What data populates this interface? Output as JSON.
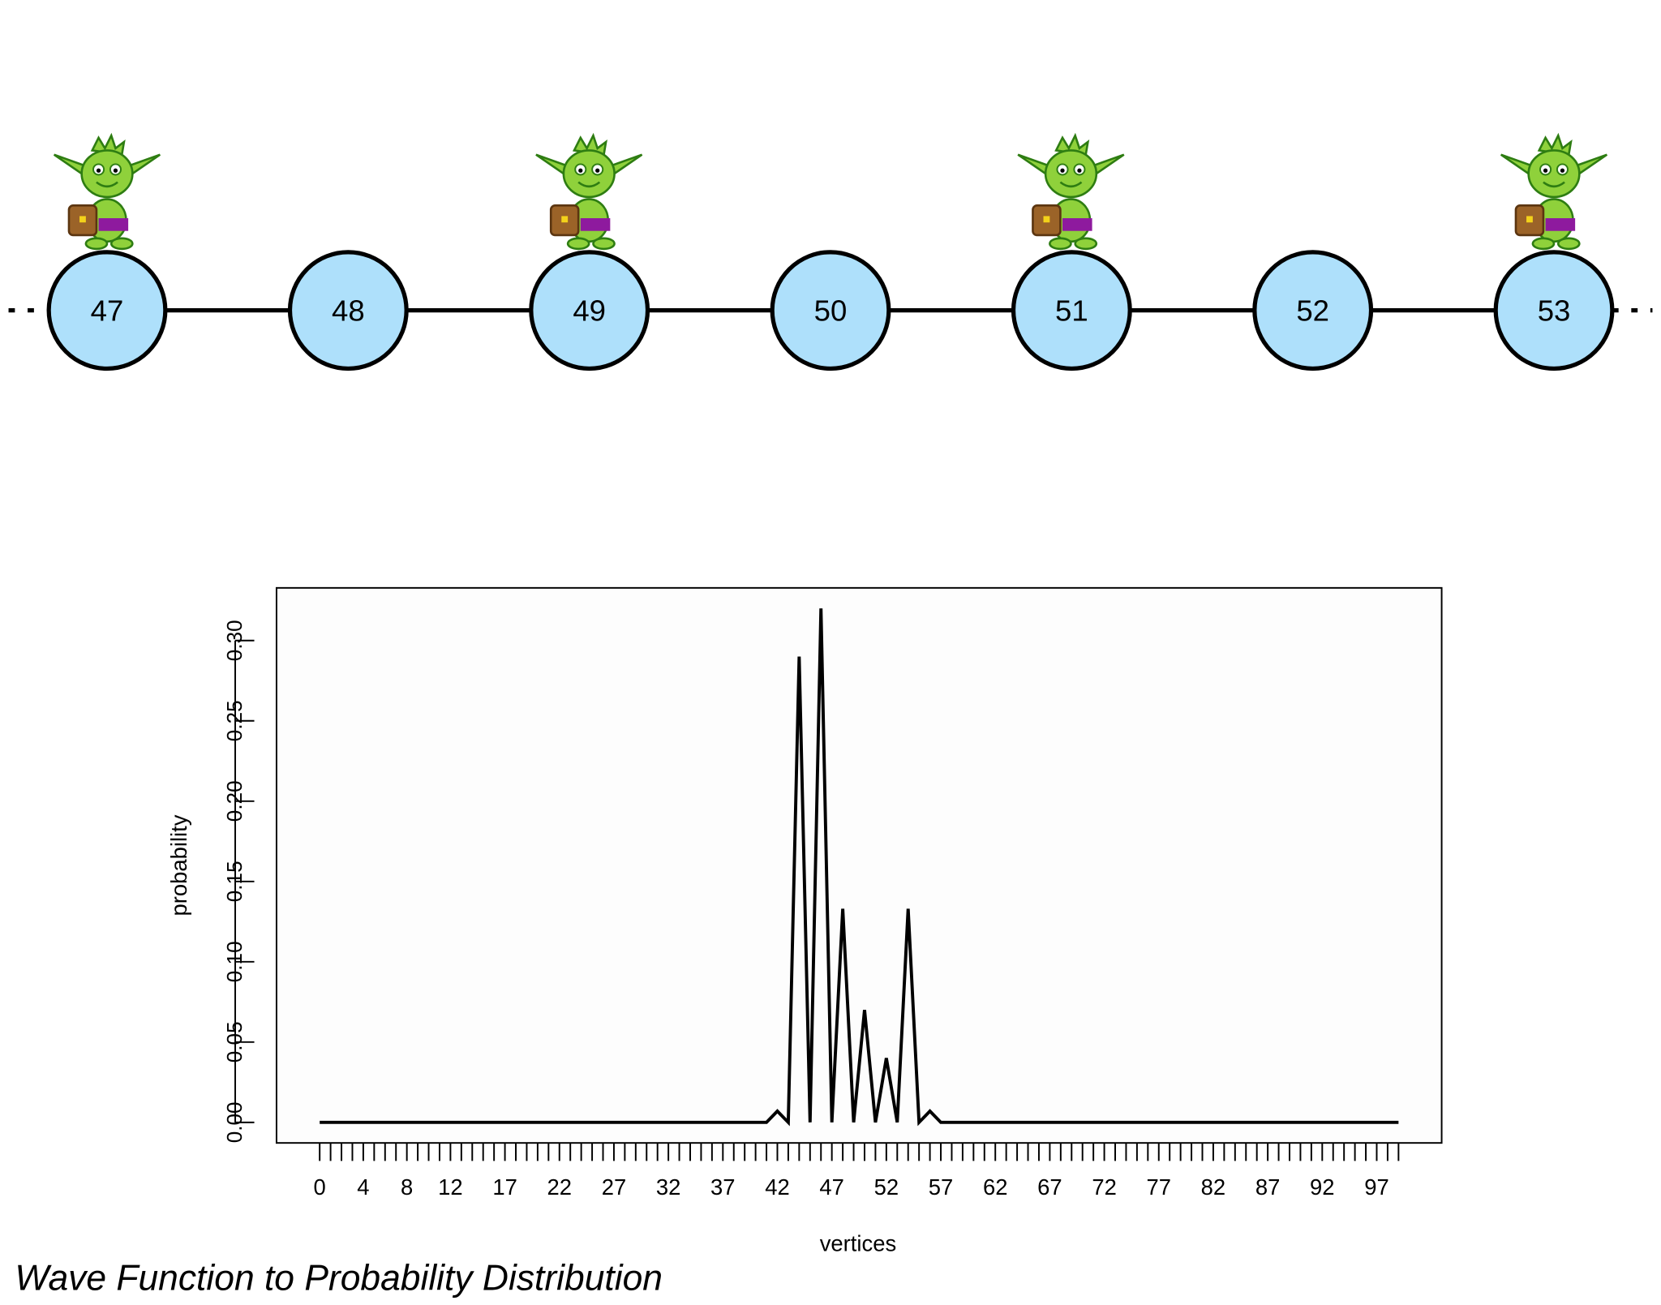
{
  "graph": {
    "nodes": [
      "47",
      "48",
      "49",
      "50",
      "51",
      "52",
      "53"
    ]
  },
  "chart_data": {
    "type": "line",
    "x": [
      0,
      1,
      2,
      3,
      4,
      5,
      6,
      7,
      8,
      9,
      10,
      11,
      12,
      13,
      14,
      15,
      16,
      17,
      18,
      19,
      20,
      21,
      22,
      23,
      24,
      25,
      26,
      27,
      28,
      29,
      30,
      31,
      32,
      33,
      34,
      35,
      36,
      37,
      38,
      39,
      40,
      41,
      42,
      43,
      44,
      45,
      46,
      47,
      48,
      49,
      50,
      51,
      52,
      53,
      54,
      55,
      56,
      57,
      58,
      59,
      60,
      61,
      62,
      63,
      64,
      65,
      66,
      67,
      68,
      69,
      70,
      71,
      72,
      73,
      74,
      75,
      76,
      77,
      78,
      79,
      80,
      81,
      82,
      83,
      84,
      85,
      86,
      87,
      88,
      89,
      90,
      91,
      92,
      93,
      94,
      95,
      96,
      97,
      98,
      99
    ],
    "values": [
      0,
      0,
      0,
      0,
      0,
      0,
      0,
      0,
      0,
      0,
      0,
      0,
      0,
      0,
      0,
      0,
      0,
      0,
      0,
      0,
      0,
      0,
      0,
      0,
      0,
      0,
      0,
      0,
      0,
      0,
      0,
      0,
      0,
      0,
      0,
      0,
      0,
      0,
      0,
      0,
      0,
      0,
      0.007,
      0,
      0.29,
      0,
      0.32,
      0,
      0.133,
      0,
      0.07,
      0,
      0.04,
      0,
      0.133,
      0,
      0.007,
      0,
      0,
      0,
      0,
      0,
      0,
      0,
      0,
      0,
      0,
      0,
      0,
      0,
      0,
      0,
      0,
      0,
      0,
      0,
      0,
      0,
      0,
      0,
      0,
      0,
      0,
      0,
      0,
      0,
      0,
      0,
      0,
      0,
      0,
      0,
      0,
      0,
      0,
      0,
      0,
      0,
      0,
      0
    ],
    "color": "#000000",
    "xlim": [
      -3.96,
      102.96
    ],
    "ylim": [
      -0.0128,
      0.3328
    ],
    "xticks": [
      0,
      4,
      8,
      12,
      17,
      22,
      27,
      32,
      37,
      42,
      47,
      52,
      57,
      62,
      67,
      72,
      77,
      82,
      87,
      92,
      97
    ],
    "yticks": [
      {
        "value": 0,
        "label": "0.00"
      },
      {
        "value": 0.05,
        "label": "0.05"
      },
      {
        "value": 0.1,
        "label": "0.10"
      },
      {
        "value": 0.15,
        "label": "0.15"
      },
      {
        "value": 0.2,
        "label": "0.20"
      },
      {
        "value": 0.25,
        "label": "0.25"
      },
      {
        "value": 0.3,
        "label": "0.30"
      }
    ],
    "xlabel": "vertices",
    "ylabel": "probability"
  },
  "caption": "Wave Function to Probability Distribution"
}
